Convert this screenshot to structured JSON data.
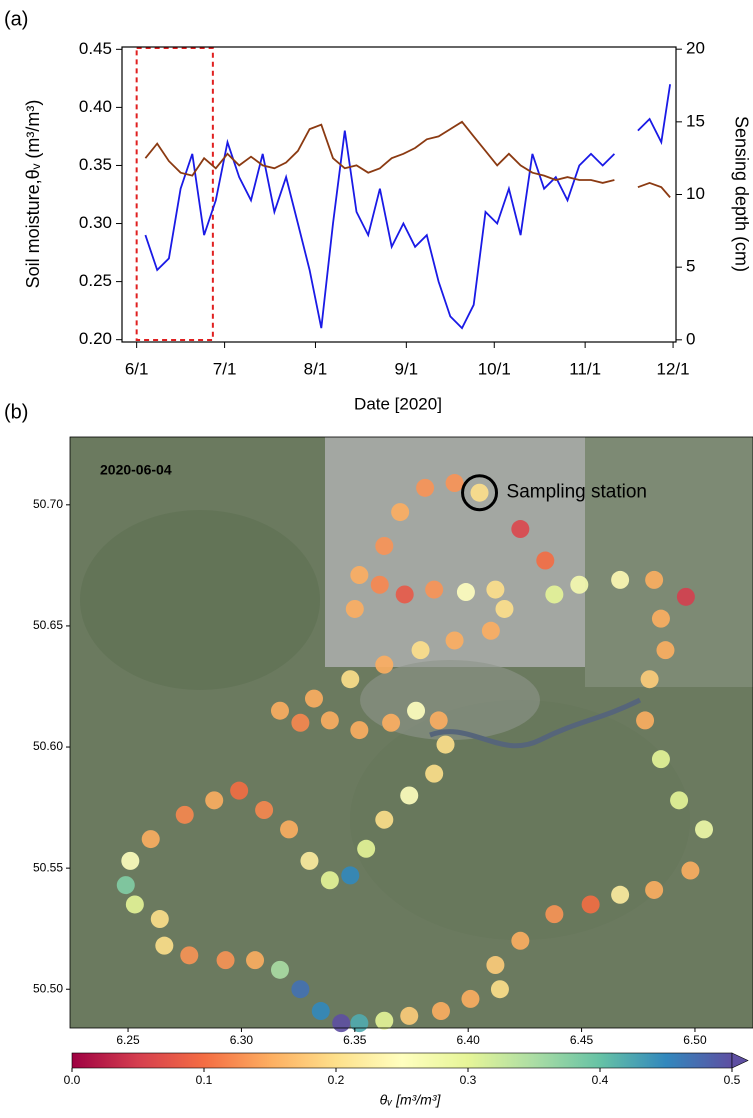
{
  "chart_data": [
    {
      "type": "line",
      "panel_label": "(a)",
      "x": [
        "2020-06-04",
        "2020-06-08",
        "2020-06-12",
        "2020-06-16",
        "2020-06-20",
        "2020-06-24",
        "2020-06-28",
        "2020-07-02",
        "2020-07-06",
        "2020-07-10",
        "2020-07-14",
        "2020-07-18",
        "2020-07-22",
        "2020-07-26",
        "2020-07-30",
        "2020-08-03",
        "2020-08-07",
        "2020-08-11",
        "2020-08-15",
        "2020-08-19",
        "2020-08-23",
        "2020-08-27",
        "2020-08-31",
        "2020-09-04",
        "2020-09-08",
        "2020-09-12",
        "2020-09-16",
        "2020-09-20",
        "2020-09-24",
        "2020-09-28",
        "2020-10-02",
        "2020-10-06",
        "2020-10-10",
        "2020-10-14",
        "2020-10-18",
        "2020-10-22",
        "2020-10-26",
        "2020-10-30",
        "2020-11-03",
        "2020-11-07",
        "2020-11-11",
        "2020-11-15",
        "2020-11-19",
        "2020-11-23",
        "2020-11-27",
        "2020-11-30"
      ],
      "xlim": [
        "2020-05-27",
        "2020-12-02"
      ],
      "xticks": [
        {
          "value": "2020-06-01",
          "label": "6/1"
        },
        {
          "value": "2020-07-01",
          "label": "7/1"
        },
        {
          "value": "2020-08-01",
          "label": "8/1"
        },
        {
          "value": "2020-09-01",
          "label": "9/1"
        },
        {
          "value": "2020-10-01",
          "label": "10/1"
        },
        {
          "value": "2020-11-01",
          "label": "11/1"
        },
        {
          "value": "2020-12-01",
          "label": "12/1"
        }
      ],
      "xlabel": "Date [2020]",
      "ylabel": "Soil moisture,θᵥ (m³/m³)",
      "y2label": "Sensing depth (cm)",
      "ylim": [
        0.198,
        0.452
      ],
      "yticks": [
        {
          "value": 0.2,
          "label": "0.20"
        },
        0.25,
        {
          "value": 0.3,
          "label": "0.30"
        },
        0.35,
        {
          "value": 0.4,
          "label": "0.40"
        },
        0.45
      ],
      "y2lim": [
        -0.15,
        20.15
      ],
      "y2ticks": [
        0,
        5,
        10,
        15,
        20
      ],
      "ycolor": "#1a1ae6",
      "y2color": "#9c4a1c",
      "series": [
        {
          "color": "#1a1ae6",
          "values": [
            0.29,
            0.26,
            0.27,
            0.33,
            0.36,
            0.29,
            0.32,
            0.37,
            0.34,
            0.32,
            0.36,
            0.31,
            0.34,
            0.3,
            0.26,
            0.21,
            0.3,
            0.38,
            0.31,
            0.29,
            0.33,
            0.28,
            0.3,
            0.28,
            0.29,
            0.25,
            0.22,
            0.21,
            0.23,
            0.31,
            0.3,
            0.33,
            0.29,
            0.36,
            0.33,
            0.34,
            0.32,
            0.35,
            0.36,
            0.35,
            0.36,
            null,
            0.38,
            0.39,
            0.37,
            0.42
          ]
        },
        {
          "color": "#8b3a12",
          "axis": "y2",
          "values": [
            12.5,
            13.5,
            12.3,
            11.5,
            11.3,
            12.5,
            11.8,
            12.8,
            12.0,
            12.6,
            12.0,
            11.8,
            12.2,
            13.0,
            14.5,
            14.8,
            12.5,
            11.8,
            12.0,
            11.5,
            11.8,
            12.5,
            12.8,
            13.2,
            13.8,
            14.0,
            14.5,
            15.0,
            14.0,
            13.0,
            12.0,
            12.8,
            12.0,
            11.5,
            11.3,
            11.0,
            11.2,
            11.0,
            11.0,
            10.8,
            11.0,
            null,
            10.5,
            10.8,
            10.5,
            9.8
          ]
        }
      ],
      "highlight": {
        "x": [
          "2020-06-01",
          "2020-06-27"
        ],
        "color": "#e02020"
      }
    },
    {
      "type": "scatter",
      "panel_label": "(b)",
      "date_label": "2020-06-04",
      "x": [
        6.405,
        6.423,
        6.434,
        6.438,
        6.449,
        6.467,
        6.482,
        6.496,
        6.485,
        6.487,
        6.48,
        6.478,
        6.485,
        6.493,
        6.504,
        6.498,
        6.482,
        6.467,
        6.454,
        6.438,
        6.423,
        6.412,
        6.414,
        6.401,
        6.388,
        6.374,
        6.363,
        6.352,
        6.344,
        6.335,
        6.326,
        6.317,
        6.306,
        6.293,
        6.277,
        6.266,
        6.264,
        6.253,
        6.249,
        6.251,
        6.26,
        6.275,
        6.288,
        6.299,
        6.31,
        6.321,
        6.33,
        6.339,
        6.348,
        6.355,
        6.363,
        6.374,
        6.385,
        6.39,
        6.387,
        6.377,
        6.366,
        6.352,
        6.339,
        6.326,
        6.317,
        6.332,
        6.348,
        6.363,
        6.379,
        6.394,
        6.41,
        6.416,
        6.412,
        6.399,
        6.385,
        6.372,
        6.361,
        6.35,
        6.352,
        6.363,
        6.37,
        6.381,
        6.394
      ],
      "y": [
        50.705,
        50.69,
        50.677,
        50.663,
        50.667,
        50.669,
        50.669,
        50.662,
        50.653,
        50.64,
        50.628,
        50.611,
        50.595,
        50.578,
        50.566,
        50.549,
        50.541,
        50.539,
        50.535,
        50.531,
        50.52,
        50.51,
        50.5,
        50.496,
        50.491,
        50.489,
        50.487,
        50.486,
        50.486,
        50.491,
        50.5,
        50.508,
        50.512,
        50.512,
        50.514,
        50.518,
        50.529,
        50.535,
        50.543,
        50.553,
        50.562,
        50.572,
        50.578,
        50.582,
        50.574,
        50.566,
        50.553,
        50.545,
        50.547,
        50.558,
        50.57,
        50.58,
        50.589,
        50.601,
        50.611,
        50.615,
        50.61,
        50.607,
        50.611,
        50.61,
        50.615,
        50.62,
        50.628,
        50.634,
        50.64,
        50.644,
        50.648,
        50.657,
        50.665,
        50.664,
        50.665,
        50.663,
        50.667,
        50.657,
        50.671,
        50.683,
        50.697,
        50.707,
        50.709
      ],
      "values": [
        0.2,
        0.06,
        0.1,
        0.3,
        0.27,
        0.24,
        0.15,
        0.05,
        0.15,
        0.15,
        0.18,
        0.15,
        0.3,
        0.3,
        0.28,
        0.15,
        0.15,
        0.22,
        0.1,
        0.13,
        0.15,
        0.18,
        0.2,
        0.15,
        0.15,
        0.18,
        0.3,
        0.42,
        0.5,
        0.45,
        0.47,
        0.35,
        0.15,
        0.13,
        0.13,
        0.2,
        0.2,
        0.3,
        0.38,
        0.25,
        0.15,
        0.12,
        0.15,
        0.1,
        0.12,
        0.15,
        0.22,
        0.3,
        0.45,
        0.3,
        0.2,
        0.25,
        0.2,
        0.2,
        0.15,
        0.25,
        0.15,
        0.15,
        0.15,
        0.12,
        0.15,
        0.15,
        0.2,
        0.15,
        0.2,
        0.15,
        0.15,
        0.2,
        0.2,
        0.25,
        0.13,
        0.08,
        0.12,
        0.15,
        0.15,
        0.13,
        0.15,
        0.13,
        0.13
      ],
      "xlim": [
        6.2244,
        6.5256
      ],
      "ylim": [
        50.484,
        50.728
      ],
      "xticks": [
        6.25,
        {
          "value": 6.3,
          "label": "6.30"
        },
        6.35,
        {
          "value": 6.4,
          "label": "6.40"
        },
        6.45,
        {
          "value": 6.5,
          "label": "6.50"
        }
      ],
      "yticks": [
        {
          "value": 50.5,
          "label": "50.50"
        },
        50.55,
        {
          "value": 50.6,
          "label": "50.60"
        },
        50.65,
        {
          "value": 50.7,
          "label": "50.70"
        }
      ],
      "colormap": "Spectral",
      "clim": [
        0,
        0.5
      ],
      "cticks": [
        {
          "value": 0,
          "label": "0.0"
        },
        0.1,
        0.2,
        0.3,
        0.4,
        0.5
      ],
      "clabel": "θᵥ [m³/m³]",
      "annotation": {
        "text": "Sampling station",
        "x": 6.405,
        "y": 50.705
      }
    }
  ]
}
